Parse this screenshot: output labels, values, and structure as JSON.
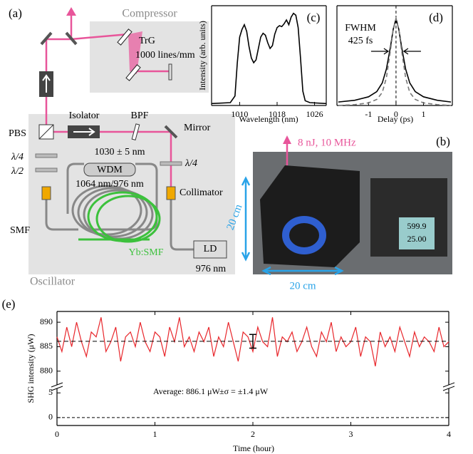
{
  "panel_a": {
    "label": "(a)",
    "compressor": "Compressor",
    "grating": "TrG",
    "grating_density": "1000 lines/mm",
    "isolator": "Isolator",
    "filter": "BPF",
    "mirror": "Mirror",
    "splitter": "PBS",
    "quarter_wave_left": "λ/4",
    "half_wave": "λ/2",
    "filter_band": "1030 ± 5 nm",
    "wdm": "WDM",
    "wdm_band": "1064 nm/976 nm",
    "quarter_wave_right": "λ/4",
    "collimator": "Collimator",
    "fiber": "SMF",
    "gain_fiber": "Yb:SMF",
    "pump": "LD",
    "pump_wavelength": "976 nm",
    "oscillator": "Oscillator"
  },
  "panel_b": {
    "label": "(b)",
    "output": "8 nJ, 10 MHz",
    "height": "20 cm",
    "width": "20 cm",
    "display": [
      "599.9",
      "25.00"
    ]
  },
  "chart_data": [
    {
      "type": "line",
      "panel_label": "(c)",
      "xlabel": "Wavelength (nm)",
      "ylabel": "Intensity (arb. units)",
      "x": [
        1004,
        1008,
        1009,
        1009.5,
        1010,
        1010.5,
        1011,
        1011.5,
        1012,
        1012.5,
        1013,
        1013.5,
        1014,
        1014.5,
        1015,
        1015.5,
        1016,
        1016.5,
        1017,
        1017.5,
        1018,
        1018.5,
        1019,
        1019.5,
        1020,
        1020.5,
        1021,
        1021.5,
        1022,
        1022.5,
        1023,
        1023.5,
        1024,
        1025,
        1028.5
      ],
      "series": [
        {
          "color": "#000000",
          "dashed": false,
          "values": [
            0.02,
            0.03,
            0.1,
            0.45,
            0.72,
            0.8,
            0.85,
            0.78,
            0.62,
            0.5,
            0.45,
            0.48,
            0.6,
            0.72,
            0.76,
            0.74,
            0.66,
            0.6,
            0.63,
            0.75,
            0.82,
            0.84,
            0.83,
            0.86,
            0.9,
            0.85,
            0.93,
            0.97,
            0.95,
            0.82,
            0.5,
            0.15,
            0.05,
            0.03,
            0.02
          ]
        }
      ],
      "xlim": [
        1004,
        1028.5
      ],
      "ylim": [
        0,
        1.05
      ],
      "xticks": [
        1010,
        1018,
        1026
      ]
    },
    {
      "type": "line",
      "panel_label": "(d)",
      "xlabel": "Delay (ps)",
      "annotations": [
        "FWHM",
        "425 fs"
      ],
      "ref_x": 0,
      "x": [
        -2.1,
        -1.5,
        -1,
        -0.7,
        -0.5,
        -0.35,
        -0.2,
        -0.1,
        0,
        0.1,
        0.2,
        0.35,
        0.5,
        0.7,
        1,
        1.5,
        2
      ],
      "series": [
        {
          "color": "#000000",
          "dashed": false,
          "values": [
            0.04,
            0.06,
            0.1,
            0.16,
            0.26,
            0.42,
            0.68,
            0.88,
            1,
            0.88,
            0.68,
            0.42,
            0.26,
            0.16,
            0.1,
            0.06,
            0.04
          ]
        },
        {
          "color": "#777777",
          "dashed": true,
          "values": [
            0,
            0.01,
            0.03,
            0.07,
            0.15,
            0.32,
            0.64,
            0.88,
            1,
            0.88,
            0.64,
            0.32,
            0.15,
            0.07,
            0.03,
            0.01,
            0
          ]
        }
      ],
      "xlim": [
        -2.15,
        2.05
      ],
      "ylim": [
        0,
        1.15
      ],
      "xticks": [
        -1,
        0,
        1
      ]
    },
    {
      "type": "line",
      "panel_label": "(e)",
      "xlabel": "Time (hour)",
      "ylabel": "SHG intensity (μW)",
      "annotations": [
        "Average: 886.1 μW",
        "±σ = ±1.4 μW"
      ],
      "mean": 886.1,
      "error": 1.4,
      "error_x": 2,
      "x": [
        0,
        0.05,
        0.1,
        0.15,
        0.2,
        0.25,
        0.3,
        0.35,
        0.4,
        0.45,
        0.5,
        0.55,
        0.6,
        0.65,
        0.7,
        0.75,
        0.8,
        0.85,
        0.9,
        0.95,
        1,
        1.05,
        1.1,
        1.15,
        1.2,
        1.25,
        1.3,
        1.35,
        1.4,
        1.45,
        1.5,
        1.55,
        1.6,
        1.65,
        1.7,
        1.75,
        1.8,
        1.85,
        1.9,
        1.95,
        2,
        2.05,
        2.1,
        2.15,
        2.2,
        2.25,
        2.3,
        2.35,
        2.4,
        2.45,
        2.5,
        2.55,
        2.6,
        2.65,
        2.7,
        2.75,
        2.8,
        2.85,
        2.9,
        2.95,
        3,
        3.05,
        3.1,
        3.15,
        3.2,
        3.25,
        3.3,
        3.35,
        3.4,
        3.45,
        3.5,
        3.55,
        3.6,
        3.65,
        3.7,
        3.75,
        3.8,
        3.85,
        3.9,
        3.95,
        4
      ],
      "series": [
        {
          "color": "#e8262b",
          "dashed": false,
          "values": [
            887,
            884,
            889,
            885,
            890,
            886,
            883,
            888,
            887,
            891,
            884,
            886,
            889,
            882,
            887,
            888,
            885,
            890,
            886,
            884,
            888,
            887,
            883,
            889,
            886,
            891,
            885,
            887,
            884,
            888,
            886,
            889,
            883,
            887,
            885,
            890,
            886,
            882,
            888,
            887,
            884,
            889,
            886,
            885,
            891,
            883,
            887,
            886,
            888,
            884,
            886,
            889,
            885,
            883,
            888,
            886,
            890,
            884,
            887,
            885,
            886,
            889,
            883,
            887,
            886,
            881,
            888,
            885,
            887,
            884,
            889,
            886,
            883,
            888,
            885,
            887,
            886,
            884,
            889,
            885,
            886
          ]
        }
      ],
      "xlim": [
        0,
        4
      ],
      "ylim": [
        -1.6,
        892.2
      ],
      "y_break": [
        5.9,
        877.2
      ],
      "xticks": [
        0,
        1,
        2,
        3,
        4
      ],
      "yticks": [
        0,
        5,
        880,
        885,
        890
      ]
    }
  ]
}
